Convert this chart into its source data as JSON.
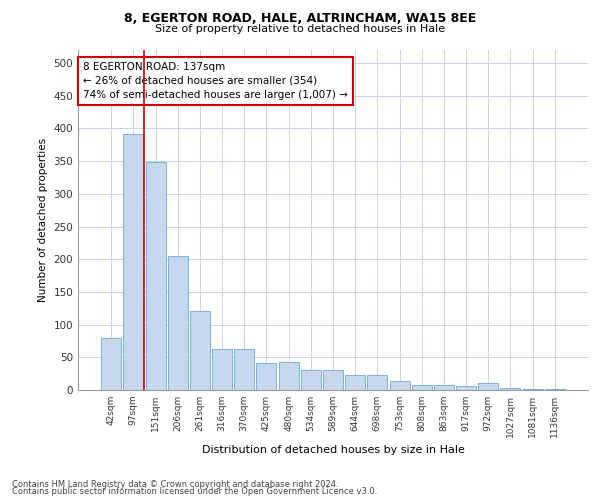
{
  "title1": "8, EGERTON ROAD, HALE, ALTRINCHAM, WA15 8EE",
  "title2": "Size of property relative to detached houses in Hale",
  "xlabel": "Distribution of detached houses by size in Hale",
  "ylabel": "Number of detached properties",
  "categories": [
    "42sqm",
    "97sqm",
    "151sqm",
    "206sqm",
    "261sqm",
    "316sqm",
    "370sqm",
    "425sqm",
    "480sqm",
    "534sqm",
    "589sqm",
    "644sqm",
    "698sqm",
    "753sqm",
    "808sqm",
    "863sqm",
    "917sqm",
    "972sqm",
    "1027sqm",
    "1081sqm",
    "1136sqm"
  ],
  "values": [
    79,
    391,
    349,
    205,
    121,
    63,
    63,
    42,
    43,
    31,
    31,
    23,
    23,
    14,
    8,
    7,
    6,
    10,
    3,
    1,
    2
  ],
  "bar_color": "#c5d8ef",
  "bar_edge_color": "#6aabd2",
  "vline_color": "#cc0000",
  "annotation_text": "8 EGERTON ROAD: 137sqm\n← 26% of detached houses are smaller (354)\n74% of semi-detached houses are larger (1,007) →",
  "annotation_box_color": "#ffffff",
  "annotation_box_edge": "#cc0000",
  "ylim": [
    0,
    520
  ],
  "yticks": [
    0,
    50,
    100,
    150,
    200,
    250,
    300,
    350,
    400,
    450,
    500
  ],
  "footer1": "Contains HM Land Registry data © Crown copyright and database right 2024.",
  "footer2": "Contains public sector information licensed under the Open Government Licence v3.0.",
  "background_color": "#ffffff",
  "grid_color": "#c8d4e3"
}
